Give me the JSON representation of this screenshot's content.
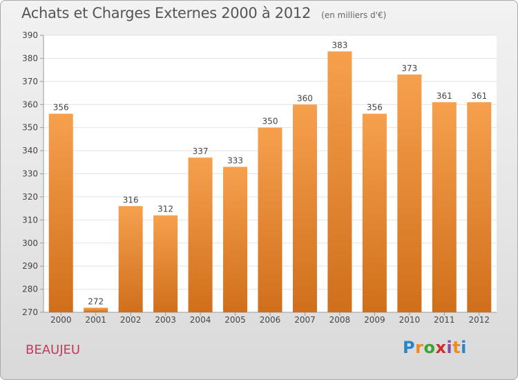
{
  "title": "Achats et Charges Externes 2000 à 2012",
  "subtitle": "(en milliers d'€)",
  "place_name": "BEAUJEU",
  "logo": {
    "letters": [
      "P",
      "r",
      "o",
      "x",
      "i",
      "t",
      "i"
    ],
    "colors": [
      "#2a86c9",
      "#f08a1c",
      "#3aa535",
      "#d02d2d",
      "#8a4aa8",
      "#f08a1c",
      "#2a86c9"
    ]
  },
  "colors": {
    "bar_light": "#f6a04e",
    "bar_dark": "#d06f1b",
    "plot_bg": "#ffffff",
    "grid": "#e2e2e2"
  },
  "chart_data": {
    "type": "bar",
    "title": "Achats et Charges Externes 2000 à 2012",
    "categories": [
      "2000",
      "2001",
      "2002",
      "2003",
      "2004",
      "2005",
      "2006",
      "2007",
      "2008",
      "2009",
      "2010",
      "2011",
      "2012"
    ],
    "values": [
      356,
      272,
      316,
      312,
      337,
      333,
      350,
      360,
      383,
      356,
      373,
      361,
      361
    ],
    "labels": [
      "356",
      "272",
      "316",
      "312",
      "337",
      "333",
      "350",
      "360",
      "383",
      "356",
      "373",
      "361",
      "361"
    ],
    "ylim": [
      270,
      390
    ],
    "yticks": [
      "270",
      "280",
      "290",
      "300",
      "310",
      "320",
      "330",
      "340",
      "350",
      "360",
      "370",
      "380",
      "390"
    ],
    "grid": true
  }
}
